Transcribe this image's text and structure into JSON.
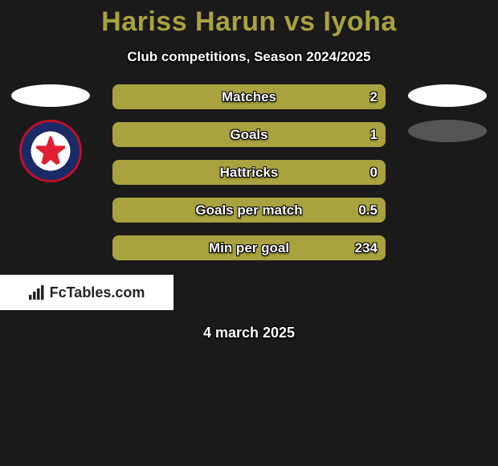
{
  "title": {
    "player_a": "Hariss Harun",
    "vs": "vs",
    "player_b": "Iyoha",
    "color": "#a9a23e",
    "fontsize": 34
  },
  "subtitle": "Club competitions, Season 2024/2025",
  "text_color": "#ffffff",
  "background_color": "#1a1a1a",
  "bar_color": "#a9a23e",
  "bar_track_color": "#a9a23e",
  "bar_label_fontsize": 17,
  "crest_a": {
    "ring_color": "#c01028",
    "inner_bg": "#1a2a66",
    "center_color": "#ffffff",
    "emblem_color": "#e02030"
  },
  "flag_a_color": "#ffffff",
  "flag_b_color": "#ffffff",
  "blank_b_color": "#555555",
  "stats": [
    {
      "label": "Matches",
      "a": null,
      "b": "2",
      "a_pct": 0,
      "b_pct": 100
    },
    {
      "label": "Goals",
      "a": null,
      "b": "1",
      "a_pct": 0,
      "b_pct": 100
    },
    {
      "label": "Hattricks",
      "a": null,
      "b": "0",
      "a_pct": 0,
      "b_pct": 100
    },
    {
      "label": "Goals per match",
      "a": null,
      "b": "0.5",
      "a_pct": 0,
      "b_pct": 100
    },
    {
      "label": "Min per goal",
      "a": null,
      "b": "234",
      "a_pct": 0,
      "b_pct": 100
    }
  ],
  "branding": "FcTables.com",
  "date": "4 march 2025"
}
